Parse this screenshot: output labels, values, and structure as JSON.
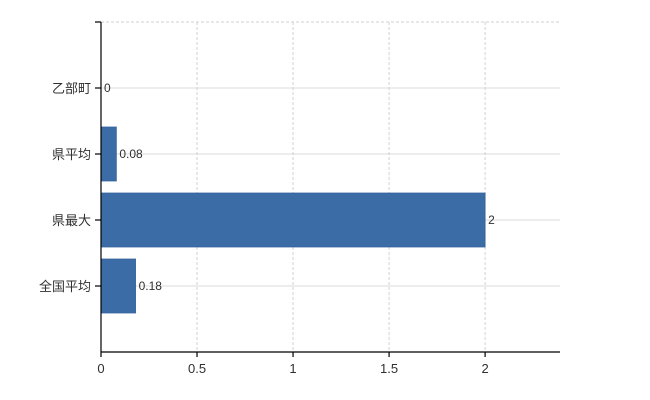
{
  "chart_data": {
    "type": "bar",
    "orientation": "horizontal",
    "title": "",
    "categories": [
      "乙部町",
      "県平均",
      "県最大",
      "全国平均"
    ],
    "values": [
      0,
      0.08,
      2,
      0.18
    ],
    "data_labels": [
      "0",
      "0.08",
      "2",
      "0.18"
    ],
    "xticks": [
      0,
      0.5,
      1,
      1.5,
      2
    ],
    "xtick_labels": [
      "0",
      "0.5",
      "1",
      "1.5",
      "2"
    ],
    "xlim": [
      0,
      2.39
    ],
    "legend": "none",
    "grid": {
      "horizontal_style": "solid",
      "vertical_style": "dashed",
      "top_border_style": "dashed"
    },
    "colors": {
      "bar_fill": "#3c6ca6",
      "bar_border": "#30609a",
      "grid_horizontal": "#d9ded9",
      "grid_vertical": "#d5cfd5",
      "axis": "#000000",
      "text": "#303030",
      "background": "#ffffff"
    }
  }
}
